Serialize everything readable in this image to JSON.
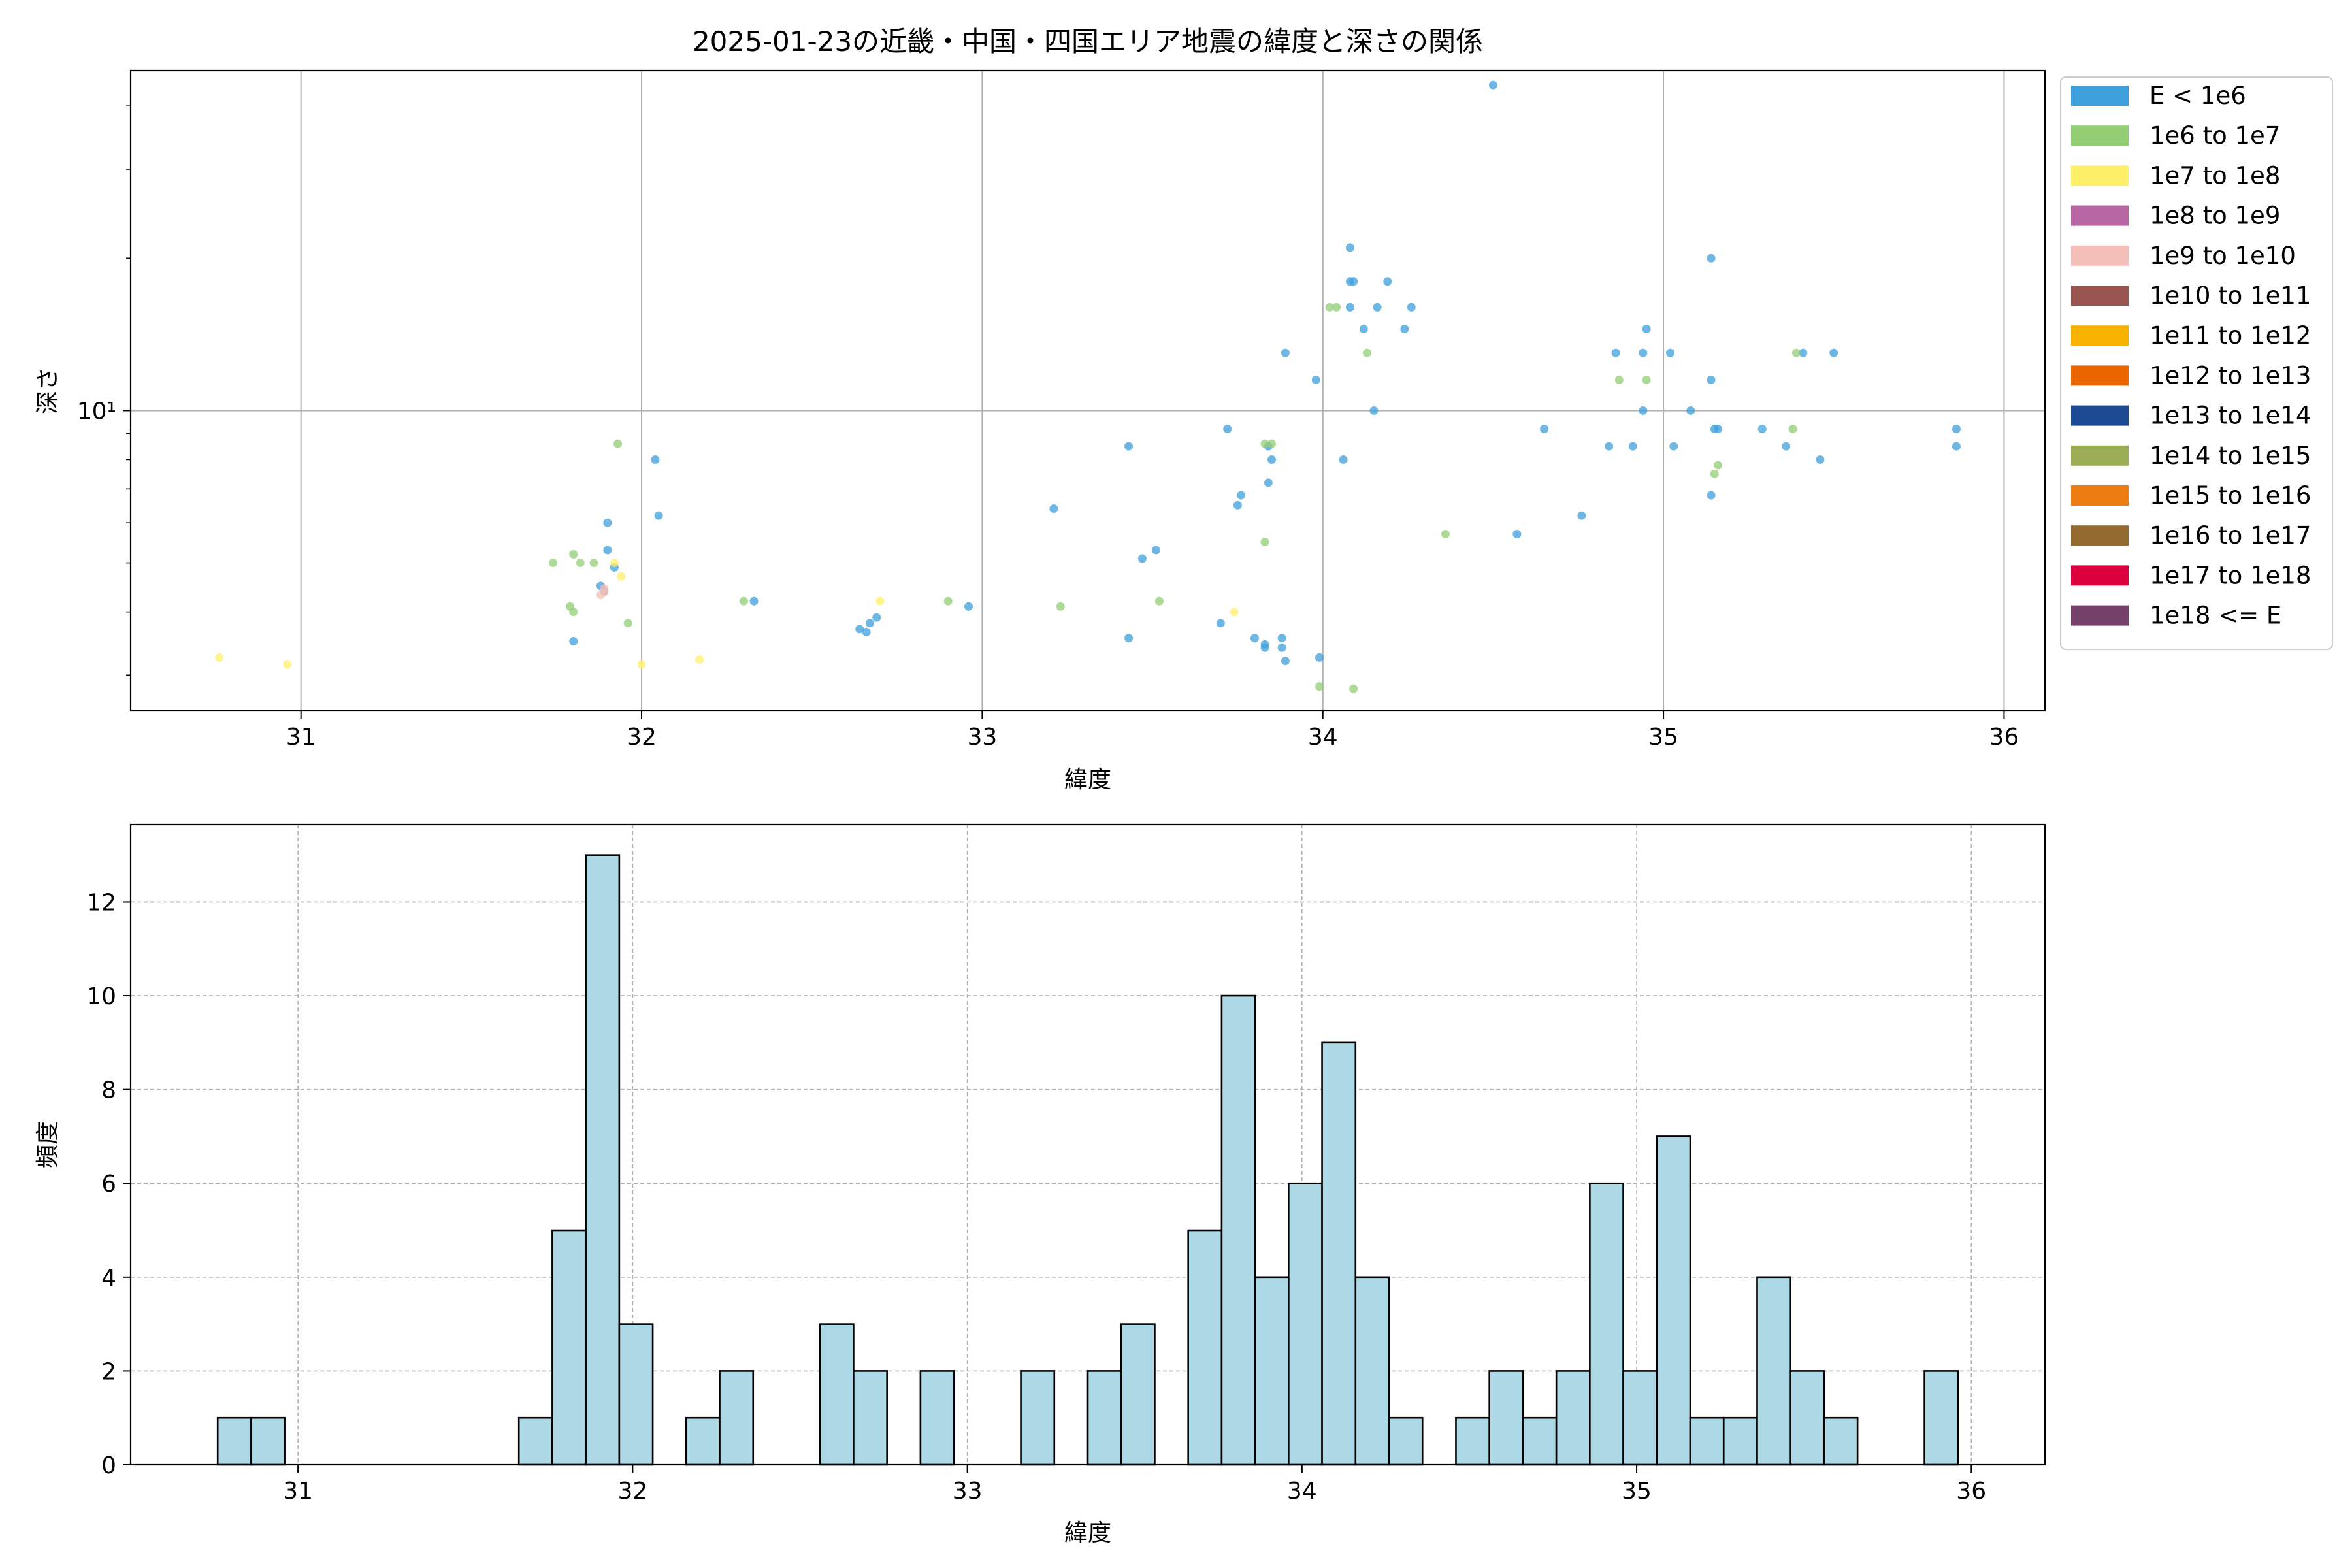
{
  "chart_data": [
    {
      "type": "scatter",
      "title": "2025-01-23の近畿・中国・四国エリア地震の緯度と深さの関係",
      "xlabel": "緯度",
      "ylabel": "深さ",
      "xlim": [
        30.5,
        36.12
      ],
      "ylim": [
        2.55,
        47.0
      ],
      "y_scale": "log",
      "x_ticks": [
        "31",
        "32",
        "33",
        "34",
        "35",
        "36"
      ],
      "y_tick_major": "10¹",
      "grid": true,
      "legend_placement": "outside-right",
      "series": [
        {
          "name": "E < 1e6",
          "color": "#3d9fdb",
          "points": [
            [
              34.5,
              44.0
            ],
            [
              34.08,
              21.0
            ],
            [
              35.14,
              20.0
            ],
            [
              34.08,
              18.0
            ],
            [
              34.09,
              18.0
            ],
            [
              34.19,
              18.0
            ],
            [
              34.08,
              16.0
            ],
            [
              34.16,
              16.0
            ],
            [
              34.26,
              16.0
            ],
            [
              34.12,
              14.5
            ],
            [
              34.24,
              14.5
            ],
            [
              34.95,
              14.5
            ],
            [
              33.89,
              13.0
            ],
            [
              34.86,
              13.0
            ],
            [
              34.94,
              13.0
            ],
            [
              35.02,
              13.0
            ],
            [
              35.41,
              13.0
            ],
            [
              35.5,
              13.0
            ],
            [
              33.98,
              11.5
            ],
            [
              35.14,
              11.5
            ],
            [
              34.15,
              10.0
            ],
            [
              34.94,
              10.0
            ],
            [
              35.08,
              10.0
            ],
            [
              33.72,
              9.2
            ],
            [
              34.65,
              9.2
            ],
            [
              35.15,
              9.2
            ],
            [
              35.16,
              9.2
            ],
            [
              35.29,
              9.2
            ],
            [
              35.86,
              9.2
            ],
            [
              33.43,
              8.5
            ],
            [
              33.84,
              8.5
            ],
            [
              34.84,
              8.5
            ],
            [
              34.91,
              8.5
            ],
            [
              35.03,
              8.5
            ],
            [
              35.36,
              8.5
            ],
            [
              35.86,
              8.5
            ],
            [
              32.04,
              8.0
            ],
            [
              33.85,
              8.0
            ],
            [
              34.06,
              8.0
            ],
            [
              35.46,
              8.0
            ],
            [
              33.84,
              7.2
            ],
            [
              33.76,
              6.8
            ],
            [
              33.75,
              6.5
            ],
            [
              33.21,
              6.4
            ],
            [
              35.14,
              6.8
            ],
            [
              32.05,
              6.2
            ],
            [
              31.9,
              6.0
            ],
            [
              34.57,
              5.7
            ],
            [
              34.76,
              6.2
            ],
            [
              31.9,
              5.3
            ],
            [
              33.51,
              5.3
            ],
            [
              33.47,
              5.1
            ],
            [
              31.92,
              4.9
            ],
            [
              31.88,
              4.5
            ],
            [
              31.89,
              4.4
            ],
            [
              32.33,
              4.2
            ],
            [
              32.96,
              4.1
            ],
            [
              32.69,
              3.9
            ],
            [
              32.67,
              3.8
            ],
            [
              32.64,
              3.7
            ],
            [
              32.66,
              3.65
            ],
            [
              33.7,
              3.8
            ],
            [
              31.8,
              3.5
            ],
            [
              33.43,
              3.55
            ],
            [
              33.8,
              3.55
            ],
            [
              33.88,
              3.55
            ],
            [
              33.83,
              3.45
            ],
            [
              33.83,
              3.4
            ],
            [
              33.88,
              3.4
            ],
            [
              33.99,
              3.25
            ],
            [
              33.89,
              3.2
            ]
          ]
        },
        {
          "name": "1e6 to 1e7",
          "color": "#93cd74",
          "points": [
            [
              34.02,
              16.0
            ],
            [
              34.04,
              16.0
            ],
            [
              34.13,
              13.0
            ],
            [
              35.39,
              13.0
            ],
            [
              34.87,
              11.5
            ],
            [
              34.95,
              11.5
            ],
            [
              35.38,
              9.2
            ],
            [
              31.93,
              8.6
            ],
            [
              33.83,
              8.6
            ],
            [
              33.85,
              8.6
            ],
            [
              35.16,
              7.8
            ],
            [
              35.15,
              7.5
            ],
            [
              34.36,
              5.7
            ],
            [
              33.83,
              5.5
            ],
            [
              31.8,
              5.2
            ],
            [
              31.74,
              5.0
            ],
            [
              31.82,
              5.0
            ],
            [
              31.86,
              5.0
            ],
            [
              32.3,
              4.2
            ],
            [
              32.9,
              4.2
            ],
            [
              33.52,
              4.2
            ],
            [
              33.23,
              4.1
            ],
            [
              31.79,
              4.1
            ],
            [
              31.8,
              4.0
            ],
            [
              31.96,
              3.8
            ],
            [
              33.99,
              2.85
            ],
            [
              34.09,
              2.82
            ]
          ]
        },
        {
          "name": "1e7 to 1e8",
          "color": "#fff06a",
          "points": [
            [
              31.92,
              5.0
            ],
            [
              31.94,
              4.7
            ],
            [
              32.7,
              4.2
            ],
            [
              33.74,
              4.0
            ],
            [
              30.76,
              3.25
            ],
            [
              30.96,
              3.15
            ],
            [
              32.0,
              3.15
            ],
            [
              32.17,
              3.22
            ]
          ]
        },
        {
          "name": "1e9 to 1e10",
          "color": "#f3bfb8",
          "points": [
            [
              31.89,
              4.45
            ],
            [
              31.89,
              4.38
            ],
            [
              31.88,
              4.32
            ]
          ]
        }
      ],
      "legend": [
        {
          "label": "E < 1e6",
          "color": "#3d9fdb"
        },
        {
          "label": "1e6 to 1e7",
          "color": "#93cd74"
        },
        {
          "label": "1e7 to 1e8",
          "color": "#fff06a"
        },
        {
          "label": "1e8 to 1e9",
          "color": "#b865a4"
        },
        {
          "label": "1e9 to 1e10",
          "color": "#f3bfb8"
        },
        {
          "label": "1e10 to 1e11",
          "color": "#98544f"
        },
        {
          "label": "1e11 to 1e12",
          "color": "#f8b200"
        },
        {
          "label": "1e12 to 1e13",
          "color": "#ec6600"
        },
        {
          "label": "1e13 to 1e14",
          "color": "#1c4b93"
        },
        {
          "label": "1e14 to 1e15",
          "color": "#9cae55"
        },
        {
          "label": "1e15 to 1e16",
          "color": "#ed7d12"
        },
        {
          "label": "1e16 to 1e17",
          "color": "#936b30"
        },
        {
          "label": "1e17 to 1e18",
          "color": "#dc003e"
        },
        {
          "label": "1e18 <= E",
          "color": "#76416b"
        }
      ]
    },
    {
      "type": "bar",
      "subtype": "histogram",
      "title": "",
      "xlabel": "緯度",
      "ylabel": "頻度",
      "xlim": [
        30.5,
        36.22
      ],
      "ylim": [
        0,
        13.65
      ],
      "x_ticks": [
        "31",
        "32",
        "33",
        "34",
        "35",
        "36"
      ],
      "y_ticks": [
        "0",
        "2",
        "4",
        "6",
        "8",
        "10",
        "12"
      ],
      "grid": true,
      "bar_color": "#add8e6",
      "bar_edge_color": "#000000",
      "bin_width": 0.1,
      "bin_starts": [
        30.76,
        30.86,
        31.66,
        31.76,
        31.86,
        31.96,
        32.16,
        32.26,
        32.56,
        32.66,
        32.86,
        33.16,
        33.36,
        33.46,
        33.66,
        33.76,
        33.86,
        33.96,
        34.06,
        34.16,
        34.26,
        34.46,
        34.56,
        34.66,
        34.76,
        34.86,
        34.96,
        35.06,
        35.16,
        35.26,
        35.36,
        35.46,
        35.56,
        35.86
      ],
      "values": [
        1,
        1,
        1,
        5,
        13,
        3,
        1,
        2,
        3,
        2,
        2,
        2,
        2,
        3,
        5,
        10,
        4,
        6,
        9,
        4,
        1,
        1,
        2,
        1,
        2,
        6,
        2,
        7,
        1,
        1,
        4,
        2,
        1,
        2
      ]
    }
  ]
}
